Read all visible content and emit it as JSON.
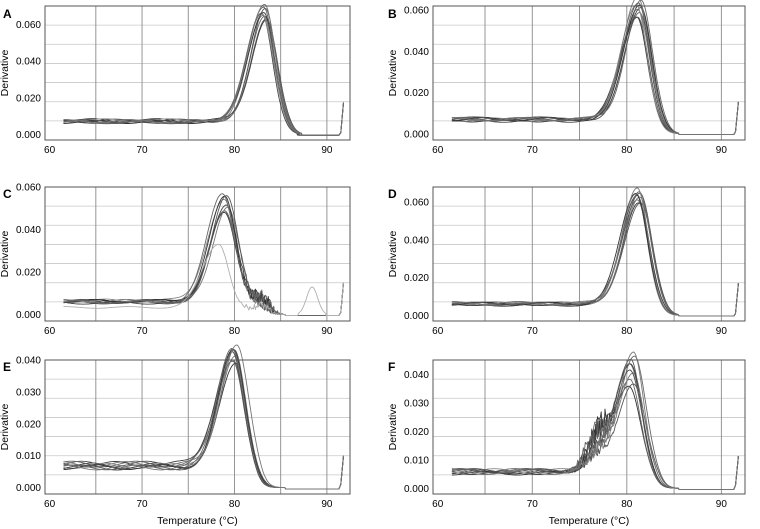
{
  "chart_data": [
    {
      "panel": "A",
      "type": "line",
      "xlabel": "",
      "ylabel": "Derivative",
      "xlim": [
        59.5,
        92.5
      ],
      "ylim": [
        -0.003,
        0.07
      ],
      "xticks": [
        60,
        70,
        80,
        90
      ],
      "yticks": [
        0,
        0.02,
        0.04,
        0.06
      ],
      "ytick_labels": [
        "0.000",
        "0.020",
        "0.040",
        "0.060"
      ],
      "grid": true,
      "peak_center_c": 83.2,
      "peak_height_range": [
        0.055,
        0.062
      ],
      "baseline": 0.0072,
      "curve_count": 10,
      "extra_shoulders": []
    },
    {
      "panel": "B",
      "type": "line",
      "xlabel": "",
      "ylabel": "Derivative",
      "xlim": [
        59.5,
        92.5
      ],
      "ylim": [
        -0.003,
        0.062
      ],
      "xticks": [
        60,
        70,
        80,
        90
      ],
      "yticks": [
        0,
        0.02,
        0.04,
        0.06
      ],
      "ytick_labels": [
        "0.000",
        "0.020",
        "0.040",
        "0.060"
      ],
      "grid": true,
      "peak_center_c": 81.3,
      "peak_height_range": [
        0.05,
        0.058
      ],
      "baseline": 0.0068,
      "curve_count": 10,
      "extra_shoulders": []
    },
    {
      "panel": "C",
      "type": "line",
      "xlabel": "",
      "ylabel": "Derivative",
      "xlim": [
        59.5,
        92.5
      ],
      "ylim": [
        -0.003,
        0.06
      ],
      "xticks": [
        60,
        70,
        80,
        90
      ],
      "yticks": [
        0,
        0.02,
        0.04,
        0.06
      ],
      "ytick_labels": [
        "0.000",
        "0.020",
        "0.040",
        "0.060"
      ],
      "grid": true,
      "peak_center_c": 79.0,
      "peak_height_range": [
        0.041,
        0.051
      ],
      "baseline": 0.006,
      "curve_count": 10,
      "outlier_curve": {
        "peak_center_c": 78.3,
        "peak_height": 0.03,
        "second_peak_c": 88.4,
        "second_peak_height": 0.013
      },
      "extra_shoulders": [
        {
          "center_c": 82.8,
          "height": 0.012
        }
      ]
    },
    {
      "panel": "D",
      "type": "line",
      "xlabel": "",
      "ylabel": "Derivative",
      "xlim": [
        59.5,
        92.5
      ],
      "ylim": [
        -0.003,
        0.068
      ],
      "xticks": [
        60,
        70,
        80,
        90
      ],
      "yticks": [
        0,
        0.02,
        0.04,
        0.06
      ],
      "ytick_labels": [
        "0.000",
        "0.020",
        "0.040",
        "0.060"
      ],
      "grid": true,
      "peak_center_c": 81.2,
      "peak_height_range": [
        0.054,
        0.06
      ],
      "baseline": 0.006,
      "curve_count": 10,
      "extra_shoulders": []
    },
    {
      "panel": "E",
      "type": "line",
      "xlabel": "Temperature (°C)",
      "ylabel": "Derivative",
      "xlim": [
        59.5,
        92.5
      ],
      "ylim": [
        -0.002,
        0.04
      ],
      "xticks": [
        60,
        70,
        80,
        90
      ],
      "yticks": [
        0,
        0.01,
        0.02,
        0.03,
        0.04
      ],
      "ytick_labels": [
        "0.000",
        "0.010",
        "0.020",
        "0.030",
        "0.040"
      ],
      "grid": true,
      "peak_center_c": 80.0,
      "peak_height_range": [
        0.032,
        0.038
      ],
      "baseline": 0.0068,
      "curve_count": 10,
      "extra_shoulders": []
    },
    {
      "panel": "F",
      "type": "line",
      "xlabel": "Temperature (°C)",
      "ylabel": "Derivative",
      "xlim": [
        59.5,
        92.5
      ],
      "ylim": [
        -0.002,
        0.045
      ],
      "xticks": [
        60,
        70,
        80,
        90
      ],
      "yticks": [
        0,
        0.01,
        0.02,
        0.03,
        0.04
      ],
      "ytick_labels": [
        "0.000",
        "0.010",
        "0.020",
        "0.030",
        "0.040"
      ],
      "grid": true,
      "peak_center_c": 80.5,
      "peak_height_range": [
        0.03,
        0.041
      ],
      "baseline": 0.0058,
      "curve_count": 10,
      "extra_shoulders": [
        {
          "center_c": 77.0,
          "height": 0.016
        }
      ]
    }
  ]
}
